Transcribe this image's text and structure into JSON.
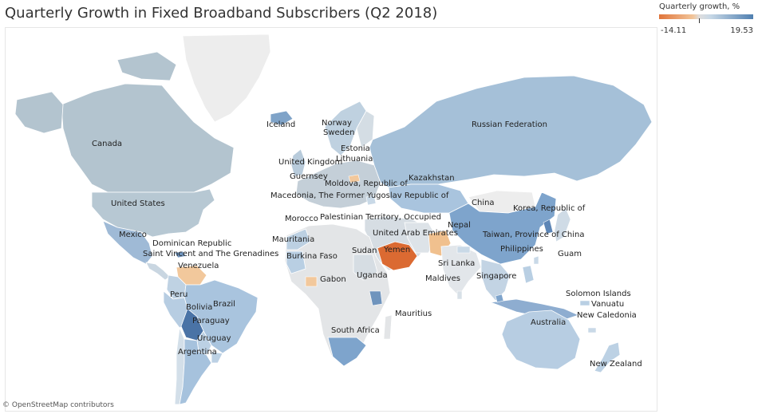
{
  "title": "Quarterly Growth in Fixed Broadband Subscribers (Q2 2018)",
  "legend": {
    "title": "Quarterly growth, %",
    "min": "-14.11",
    "max": "19.53",
    "color_low": "#e0743a",
    "color_mid": "#dedede",
    "color_high": "#4f7fb0"
  },
  "credit": "© OpenStreetMap contributors",
  "labels": [
    {
      "key": "canada",
      "text": "Canada"
    },
    {
      "key": "united-states",
      "text": "United States"
    },
    {
      "key": "mexico",
      "text": "Mexico"
    },
    {
      "key": "dominican-republic",
      "text": "Dominican Republic"
    },
    {
      "key": "saint-vincent",
      "text": "Saint Vincent and The Grenadines"
    },
    {
      "key": "venezuela",
      "text": "Venezuela"
    },
    {
      "key": "peru",
      "text": "Peru"
    },
    {
      "key": "bolivia",
      "text": "Bolivia"
    },
    {
      "key": "brazil",
      "text": "Brazil"
    },
    {
      "key": "paraguay",
      "text": "Paraguay"
    },
    {
      "key": "uruguay",
      "text": "Uruguay"
    },
    {
      "key": "argentina",
      "text": "Argentina"
    },
    {
      "key": "iceland",
      "text": "Iceland"
    },
    {
      "key": "norway",
      "text": "Norway"
    },
    {
      "key": "sweden",
      "text": "Sweden"
    },
    {
      "key": "estonia",
      "text": "Estonia"
    },
    {
      "key": "lithuania",
      "text": "Lithuania"
    },
    {
      "key": "united-kingdom",
      "text": "United Kingdom"
    },
    {
      "key": "guernsey",
      "text": "Guernsey"
    },
    {
      "key": "moldova",
      "text": "Moldova, Republic of"
    },
    {
      "key": "macedonia",
      "text": "Macedonia, The Former Yugoslav Republic of"
    },
    {
      "key": "kazakhstan",
      "text": "Kazakhstan"
    },
    {
      "key": "russian-federation",
      "text": "Russian Federation"
    },
    {
      "key": "morocco",
      "text": "Morocco"
    },
    {
      "key": "palestinian-territory",
      "text": "Palestinian Territory, Occupied"
    },
    {
      "key": "mauritania",
      "text": "Mauritania"
    },
    {
      "key": "burkina-faso",
      "text": "Burkina Faso"
    },
    {
      "key": "sudan",
      "text": "Sudan"
    },
    {
      "key": "yemen",
      "text": "Yemen"
    },
    {
      "key": "united-arab-emirates",
      "text": "United Arab Emirates"
    },
    {
      "key": "nepal",
      "text": "Nepal"
    },
    {
      "key": "china",
      "text": "China"
    },
    {
      "key": "korea",
      "text": "Korea, Republic of"
    },
    {
      "key": "taiwan",
      "text": "Taiwan, Province of China"
    },
    {
      "key": "philippines",
      "text": "Philippines"
    },
    {
      "key": "guam",
      "text": "Guam"
    },
    {
      "key": "sri-lanka",
      "text": "Sri Lanka"
    },
    {
      "key": "maldives",
      "text": "Maldives"
    },
    {
      "key": "singapore",
      "text": "Singapore"
    },
    {
      "key": "gabon",
      "text": "Gabon"
    },
    {
      "key": "uganda",
      "text": "Uganda"
    },
    {
      "key": "mauritius",
      "text": "Mauritius"
    },
    {
      "key": "south-africa",
      "text": "South Africa"
    },
    {
      "key": "solomon-islands",
      "text": "Solomon Islands"
    },
    {
      "key": "vanuatu",
      "text": "Vanuatu"
    },
    {
      "key": "new-caledonia",
      "text": "New Caledonia"
    },
    {
      "key": "australia",
      "text": "Australia"
    },
    {
      "key": "new-zealand",
      "text": "New Zealand"
    }
  ]
}
